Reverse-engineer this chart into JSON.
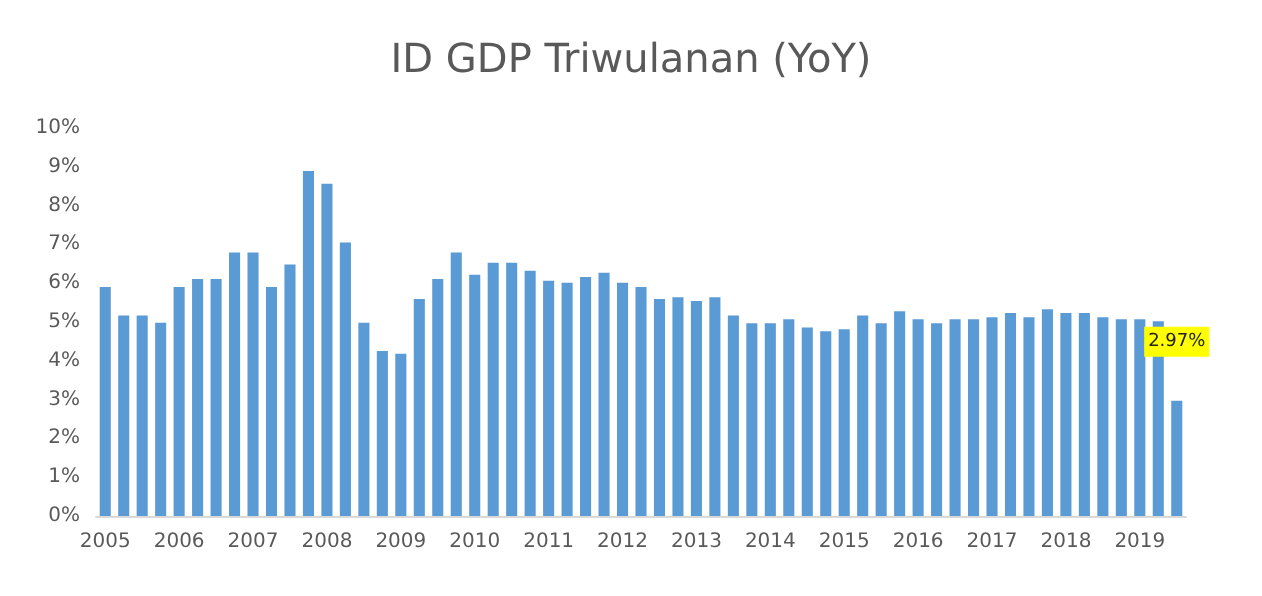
{
  "chart_data": {
    "type": "bar",
    "title": "ID GDP Triwulanan (YoY)",
    "categories": [
      "2005",
      null,
      null,
      null,
      "2006",
      null,
      null,
      null,
      "2007",
      null,
      null,
      null,
      "2008",
      null,
      null,
      null,
      "2009",
      null,
      null,
      null,
      "2010",
      null,
      null,
      null,
      "2011",
      null,
      null,
      null,
      "2012",
      null,
      null,
      null,
      "2013",
      null,
      null,
      null,
      "2014",
      null,
      null,
      null,
      "2015",
      null,
      null,
      null,
      "2016",
      null,
      null,
      null,
      "2017",
      null,
      null,
      null,
      "2018",
      null,
      null,
      null,
      "2019",
      null,
      null
    ],
    "values": [
      5.9,
      5.17,
      5.17,
      4.98,
      5.9,
      6.11,
      6.11,
      6.79,
      6.79,
      5.9,
      6.48,
      8.89,
      8.56,
      7.05,
      4.98,
      4.25,
      4.18,
      5.59,
      6.11,
      6.79,
      6.22,
      6.53,
      6.53,
      6.32,
      6.06,
      6.01,
      6.16,
      6.27,
      6.01,
      5.9,
      5.59,
      5.64,
      5.54,
      5.64,
      5.17,
      4.97,
      4.97,
      5.07,
      4.86,
      4.76,
      4.81,
      5.17,
      4.97,
      5.28,
      5.07,
      4.97,
      5.07,
      5.07,
      5.12,
      5.23,
      5.12,
      5.33,
      5.23,
      5.23,
      5.12,
      5.07,
      5.07,
      5.02,
      2.97
    ],
    "value_labels": [
      null,
      null,
      null,
      null,
      null,
      null,
      null,
      null,
      null,
      null,
      null,
      null,
      null,
      null,
      null,
      null,
      null,
      null,
      null,
      null,
      null,
      null,
      null,
      null,
      null,
      null,
      null,
      null,
      null,
      null,
      null,
      null,
      null,
      null,
      null,
      null,
      null,
      null,
      null,
      null,
      null,
      null,
      null,
      null,
      null,
      null,
      null,
      null,
      null,
      null,
      null,
      null,
      null,
      null,
      null,
      null,
      null,
      null,
      "2.97%"
    ],
    "color": "#5b9bd5",
    "ylim": [
      0,
      10
    ],
    "yticks": [
      {
        "value": 0,
        "label": "0%"
      },
      {
        "value": 1,
        "label": "1%"
      },
      {
        "value": 2,
        "label": "2%"
      },
      {
        "value": 3,
        "label": "3%"
      },
      {
        "value": 4,
        "label": "4%"
      },
      {
        "value": 5,
        "label": "5%"
      },
      {
        "value": 6,
        "label": "6%"
      },
      {
        "value": 7,
        "label": "7%"
      },
      {
        "value": 8,
        "label": "8%"
      },
      {
        "value": 9,
        "label": "9%"
      },
      {
        "value": 10,
        "label": "10%"
      }
    ],
    "grid": false
  }
}
